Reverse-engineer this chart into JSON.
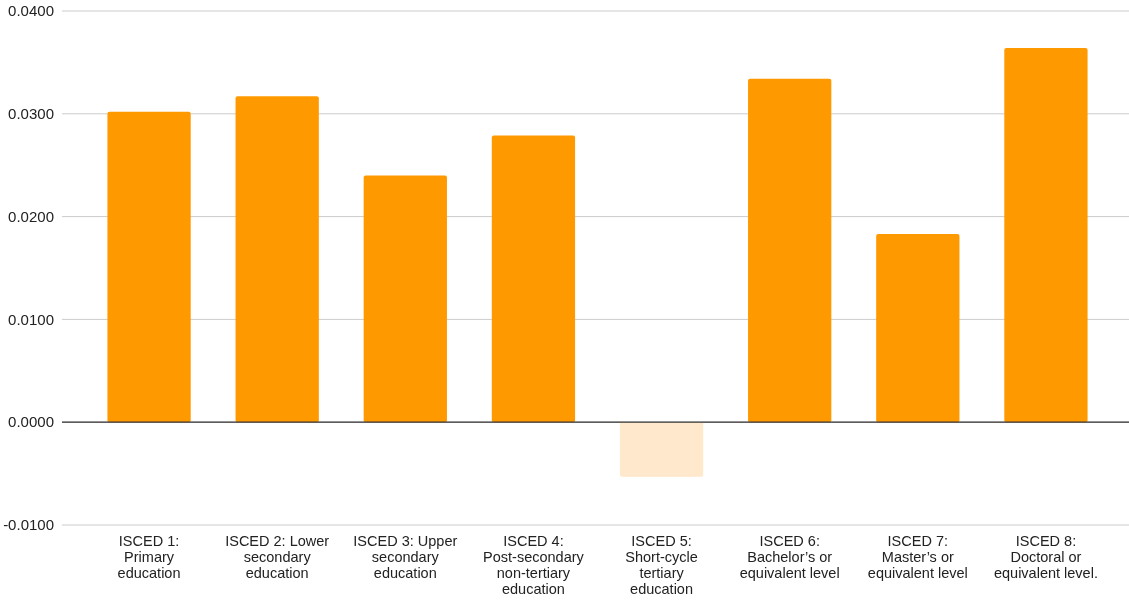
{
  "chart_data": {
    "type": "bar",
    "categories": [
      "ISCED 1: Primary education",
      "ISCED 2: Lower secondary education",
      "ISCED 3: Upper secondary education",
      "ISCED 4: Post-secondary non-tertiary education",
      "ISCED 5: Short-cycle tertiary education",
      "ISCED 6: Bachelor’s or equivalent level",
      "ISCED 7: Master’s or equivalent level",
      "ISCED 8: Doctoral or equivalent level."
    ],
    "values": [
      0.0302,
      0.0317,
      0.024,
      0.0279,
      -0.0053,
      0.0334,
      0.0183,
      0.0364
    ],
    "colors": [
      "#ff9900",
      "#ff9900",
      "#ff9900",
      "#ff9900",
      "#ffe8cc",
      "#ff9900",
      "#ff9900",
      "#ff9900"
    ],
    "ylim": [
      -0.01,
      0.04
    ],
    "yticks": [
      {
        "value": -0.01,
        "label": "-0.0100"
      },
      {
        "value": 0,
        "label": "0.0000"
      },
      {
        "value": 0.01,
        "label": "0.0100"
      },
      {
        "value": 0.02,
        "label": "0.0200"
      },
      {
        "value": 0.03,
        "label": "0.0300"
      },
      {
        "value": 0.04,
        "label": "0.0400"
      }
    ],
    "grid": "y"
  }
}
